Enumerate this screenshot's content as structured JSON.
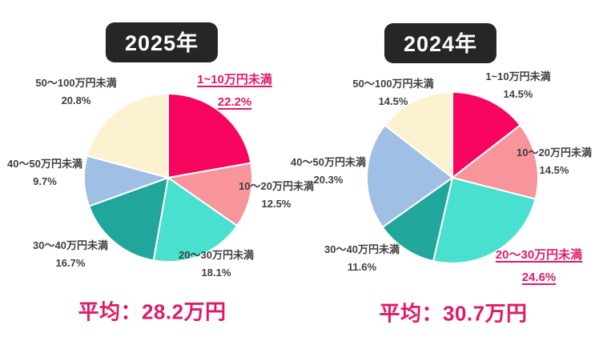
{
  "chart_data": [
    {
      "type": "pie",
      "title": "2025年",
      "categories": [
        "1~10万円未満",
        "10～20万円未満",
        "20～30万円未満",
        "30～40万円未満",
        "40～50万円未満",
        "50～100万円未満"
      ],
      "values": [
        22.2,
        12.5,
        18.1,
        16.7,
        9.7,
        20.8
      ],
      "value_labels": [
        "22.2%",
        "12.5%",
        "18.1%",
        "16.7%",
        "9.7%",
        "20.8%"
      ],
      "highlighted_index": 0,
      "highlighted_category": "1~10万円未満",
      "annotation": "平均：28.2万円",
      "start_angle_deg": 0,
      "direction": "clockwise",
      "legend": "none"
    },
    {
      "type": "pie",
      "title": "2024年",
      "categories": [
        "1~10万円未満",
        "10～20万円未満",
        "20～30万円未満",
        "30～40万円未満",
        "40～50万円未満",
        "50～100万円未満"
      ],
      "values": [
        14.5,
        14.5,
        24.6,
        11.6,
        20.3,
        14.5
      ],
      "value_labels": [
        "14.5%",
        "14.5%",
        "24.6%",
        "11.6%",
        "20.3%",
        "14.5%"
      ],
      "highlighted_index": 2,
      "highlighted_category": "20～30万円未満",
      "annotation": "平均：30.7万円",
      "start_angle_deg": 0,
      "direction": "clockwise",
      "legend": "none"
    }
  ],
  "colors": {
    "slices": [
      "#F7045E",
      "#F7959B",
      "#4AE0D0",
      "#20A69B",
      "#9FBFE5",
      "#FCF2D0"
    ],
    "slice_border": "#FFFFFF",
    "highlight_text": "#E01A67",
    "label_text": "#3F3F3F",
    "badge_background": "#262626",
    "badge_text": "#FFFFFF"
  }
}
